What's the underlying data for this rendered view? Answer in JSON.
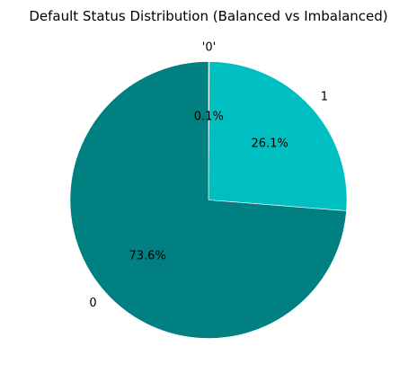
{
  "chart_data": {
    "type": "pie",
    "title": "Default Status Distribution (Balanced vs Imbalanced)",
    "start_angle_deg": 90,
    "direction": "clockwise",
    "slices": [
      {
        "label": "'0'",
        "pct_label": "0.1%",
        "value": 0.1,
        "color": "#48d1cc"
      },
      {
        "label": "1",
        "pct_label": "26.1%",
        "value": 26.1,
        "color": "#00bfc0"
      },
      {
        "label": "0",
        "pct_label": "73.6%",
        "value": 73.6,
        "color": "#008080"
      }
    ]
  }
}
